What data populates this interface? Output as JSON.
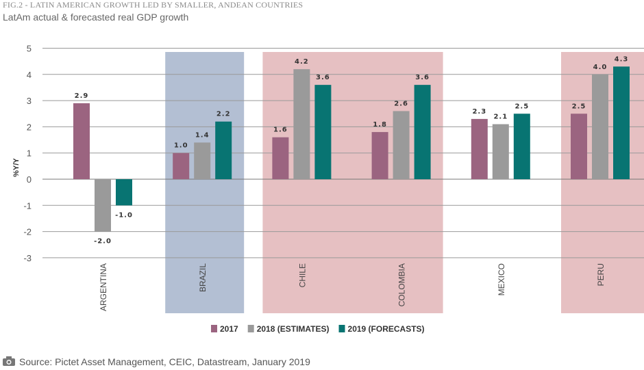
{
  "header": {
    "figure_label": "FIG.2 - LATIN AMERICAN GROWTH LED BY SMALLER, ANDEAN COUNTRIES",
    "subtitle": "LatAm actual & forecasted real GDP growth"
  },
  "footer": {
    "source": "Source: Pictet Asset Management, CEIC, Datastream, January 2019",
    "icon": "camera-icon"
  },
  "chart_data": {
    "type": "bar",
    "title": "",
    "ylabel": "%Y/Y",
    "xlabel": "",
    "ylim": [
      -3,
      5
    ],
    "yticks": [
      5,
      4,
      3,
      2,
      1,
      0,
      -1,
      -2,
      -3
    ],
    "grid": true,
    "legend_placement": "bottom",
    "categories": [
      "ARGENTINA",
      "BRAZIL",
      "CHILE",
      "COLOMBIA",
      "MEXICO",
      "PERU"
    ],
    "series": [
      {
        "name": "2017",
        "color": "#9b6480",
        "values": [
          2.9,
          1.0,
          1.6,
          1.8,
          2.3,
          2.5
        ]
      },
      {
        "name": "2018 (ESTIMATES)",
        "color": "#9a9a9a",
        "values": [
          -2.0,
          1.4,
          4.2,
          2.6,
          2.1,
          4.0
        ]
      },
      {
        "name": "2019 (FORECASTS)",
        "color": "#087472",
        "values": [
          -1.0,
          2.2,
          3.6,
          3.6,
          2.5,
          4.3
        ]
      }
    ],
    "highlight_bands": [
      {
        "categories": [
          "BRAZIL"
        ],
        "color": "#b3bfd3"
      },
      {
        "categories": [
          "CHILE",
          "COLOMBIA"
        ],
        "color": "#e6c0c2"
      },
      {
        "categories": [
          "PERU"
        ],
        "color": "#e6c0c2"
      }
    ]
  }
}
